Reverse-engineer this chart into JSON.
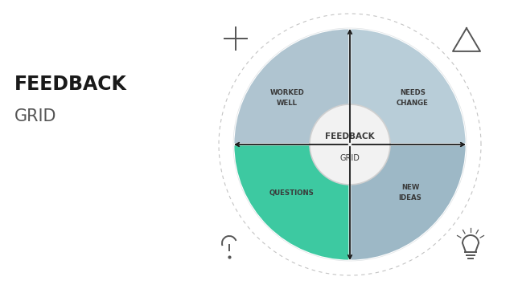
{
  "title_bold": "FEEDBACK",
  "title_light": "GRID",
  "center_label_line1": "FEEDBACK",
  "center_label_line2": "GRID",
  "quadrant_colors": [
    "#afc4d0",
    "#b8cdd8",
    "#3dc9a1",
    "#9db8c6"
  ],
  "center_fill": "#f2f2f2",
  "center_edge": "#d0d0d0",
  "background_color": "#ffffff",
  "text_color": "#3a3a3a",
  "dashed_circle_color": "#aaaaaa",
  "arrow_color": "#1a1a1a",
  "icon_color": "#555555",
  "title_bold_color": "#1a1a1a",
  "title_light_color": "#555555"
}
